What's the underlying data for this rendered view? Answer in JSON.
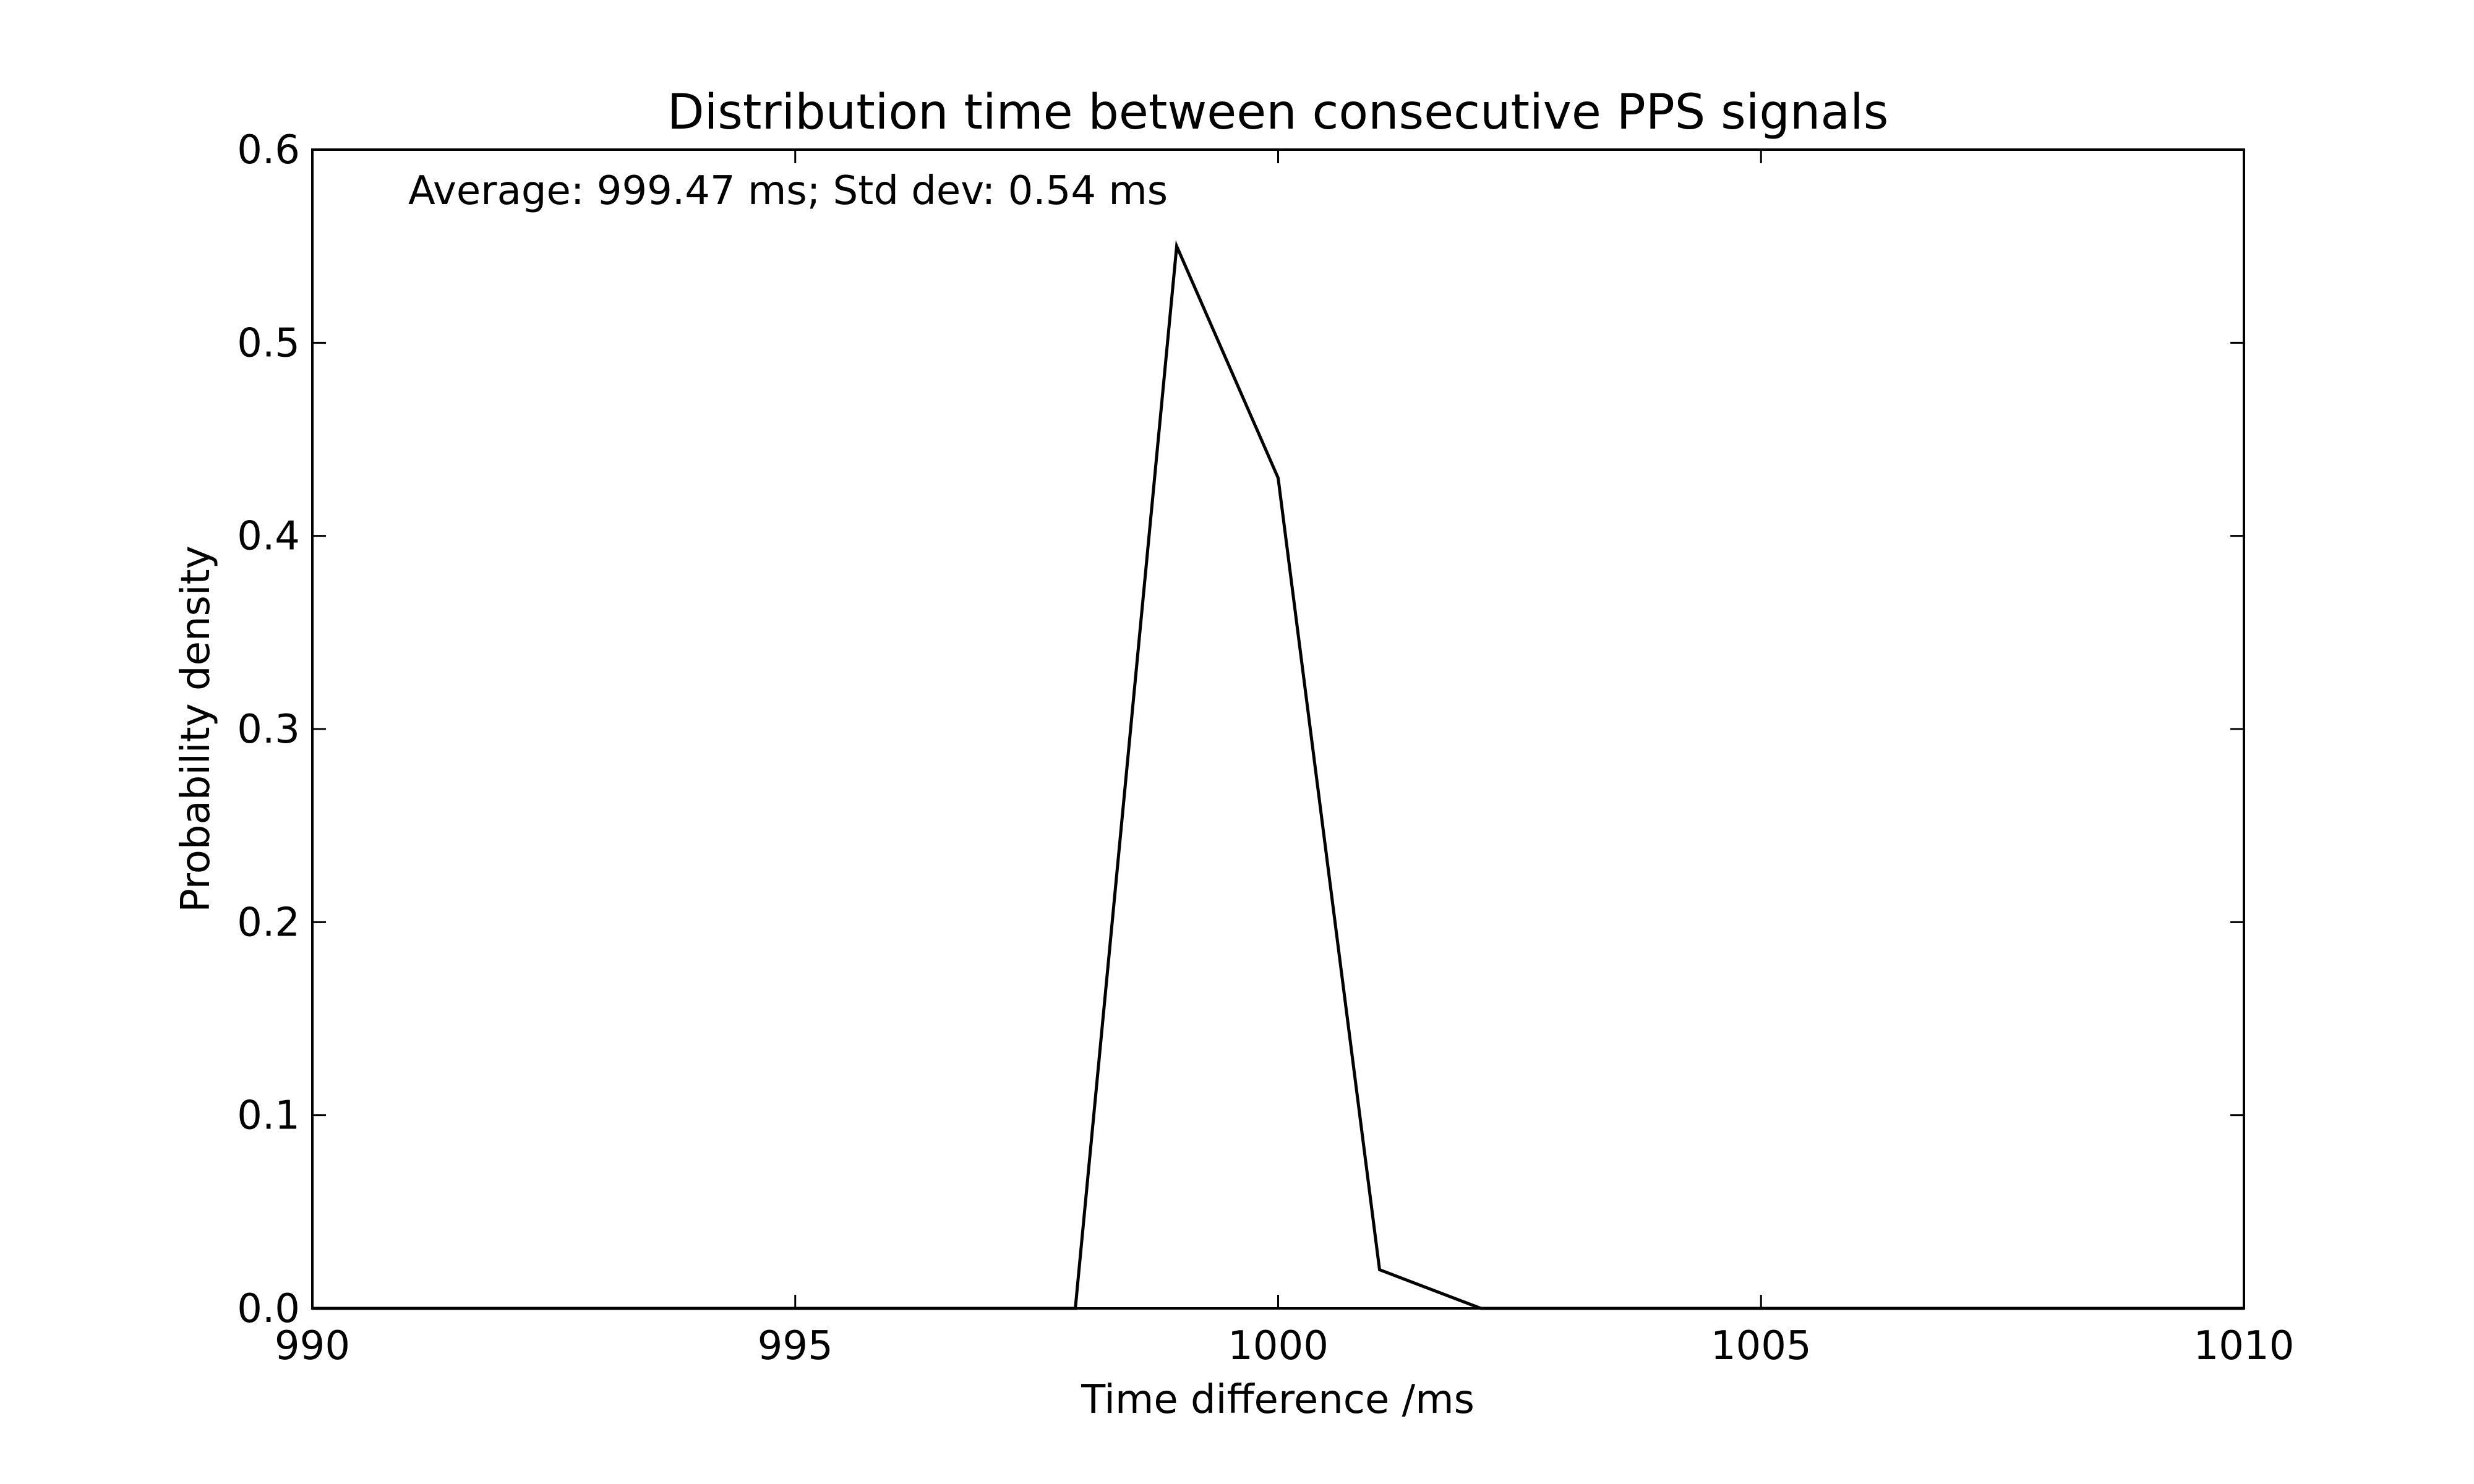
{
  "chart_data": {
    "type": "line",
    "title": "Distribution time between consecutive PPS signals",
    "annotation": "Average: 999.47 ms;  Std dev: 0.54 ms",
    "xlabel": "Time difference /ms",
    "ylabel": "Probability density",
    "xlim": [
      990,
      1010
    ],
    "ylim": [
      0.0,
      0.6
    ],
    "xticks": [
      990,
      995,
      1000,
      1005,
      1010
    ],
    "xtick_labels": [
      "990",
      "995",
      "1000",
      "1005",
      "1010"
    ],
    "yticks": [
      0.0,
      0.1,
      0.2,
      0.3,
      0.4,
      0.5,
      0.6
    ],
    "ytick_labels": [
      "0.0",
      "0.1",
      "0.2",
      "0.3",
      "0.4",
      "0.5",
      "0.6"
    ],
    "grid": false,
    "series": [
      {
        "color": "#000000",
        "x": [
          990,
          997.9,
          998.95,
          1000.0,
          1001.05,
          1002.1,
          1010
        ],
        "y": [
          0.0,
          0.0,
          0.55,
          0.43,
          0.02,
          0.0,
          0.0
        ]
      }
    ]
  }
}
